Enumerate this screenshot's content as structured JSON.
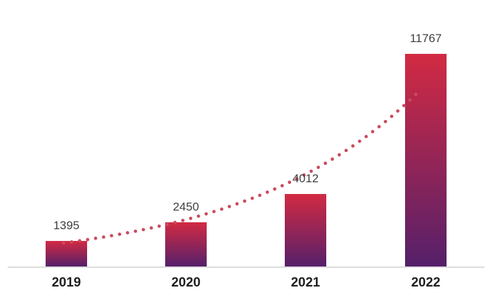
{
  "chart_data": {
    "type": "bar",
    "title": "",
    "xlabel": "",
    "ylabel": "",
    "categories": [
      "2019",
      "2020",
      "2021",
      "2022"
    ],
    "values": [
      1395,
      2450,
      4012,
      11767
    ],
    "data_labels": [
      "1395",
      "2450",
      "4012",
      "11767"
    ],
    "ylim": [
      0,
      12250
    ],
    "grid": false,
    "legend": false,
    "y_axis_visible": false,
    "trendline": {
      "type": "exponential",
      "style": "dotted"
    },
    "colors": {
      "bar_gradient_top": "#d22a43",
      "bar_gradient_bottom": "#55206a",
      "trendline_dot": "#cb4a5e",
      "axis_line": "#dcdcdc",
      "value_label": "#3f3f3f",
      "tick_label": "#1f1f1f",
      "background": "#ffffff"
    }
  }
}
